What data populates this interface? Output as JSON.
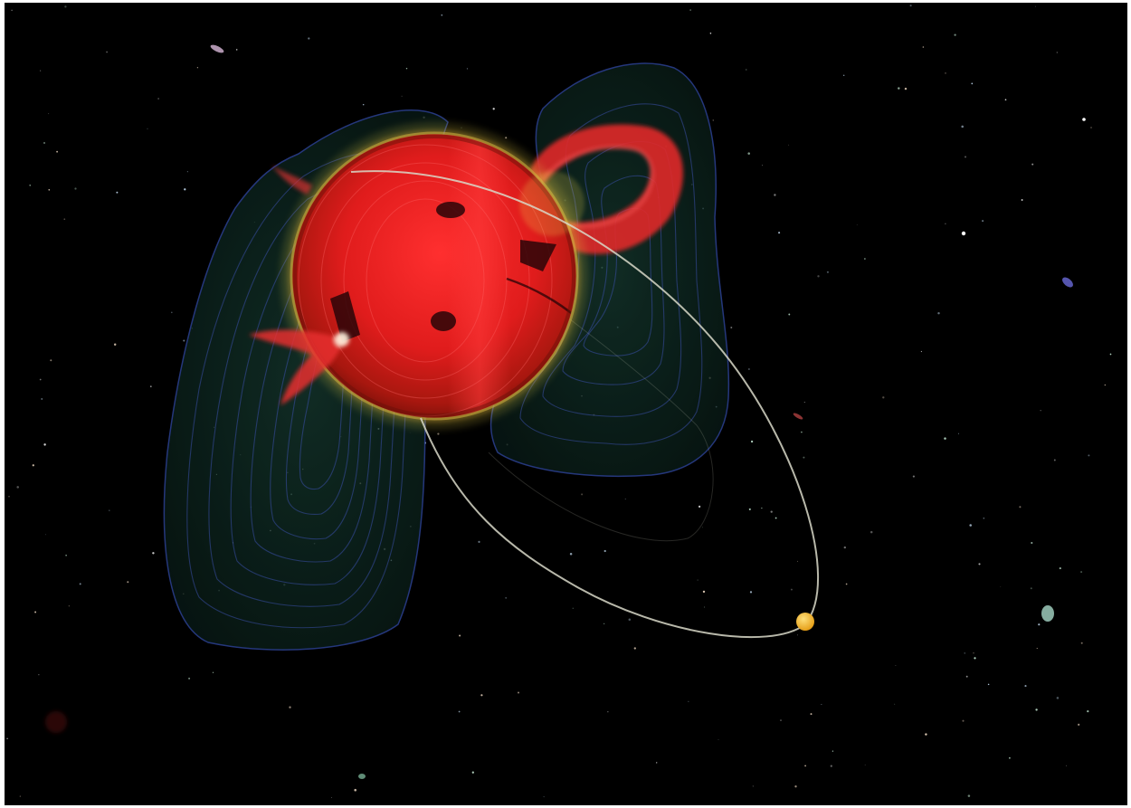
{
  "scene": {
    "subject": "illustration",
    "colors": {
      "space": "#000000",
      "star_surface": "#e01c1c",
      "star_core": "#ff2a2a",
      "star_limb": "#9c1a10",
      "corona_glow": "#e8d24a",
      "prominence": "#e83030",
      "starspot": "#2a0508",
      "field_lobe_fill": "#0f2a24",
      "field_line": "#3a4fa8",
      "orbit_path": "#d8d8c8",
      "planet": "#f5b82a"
    }
  }
}
